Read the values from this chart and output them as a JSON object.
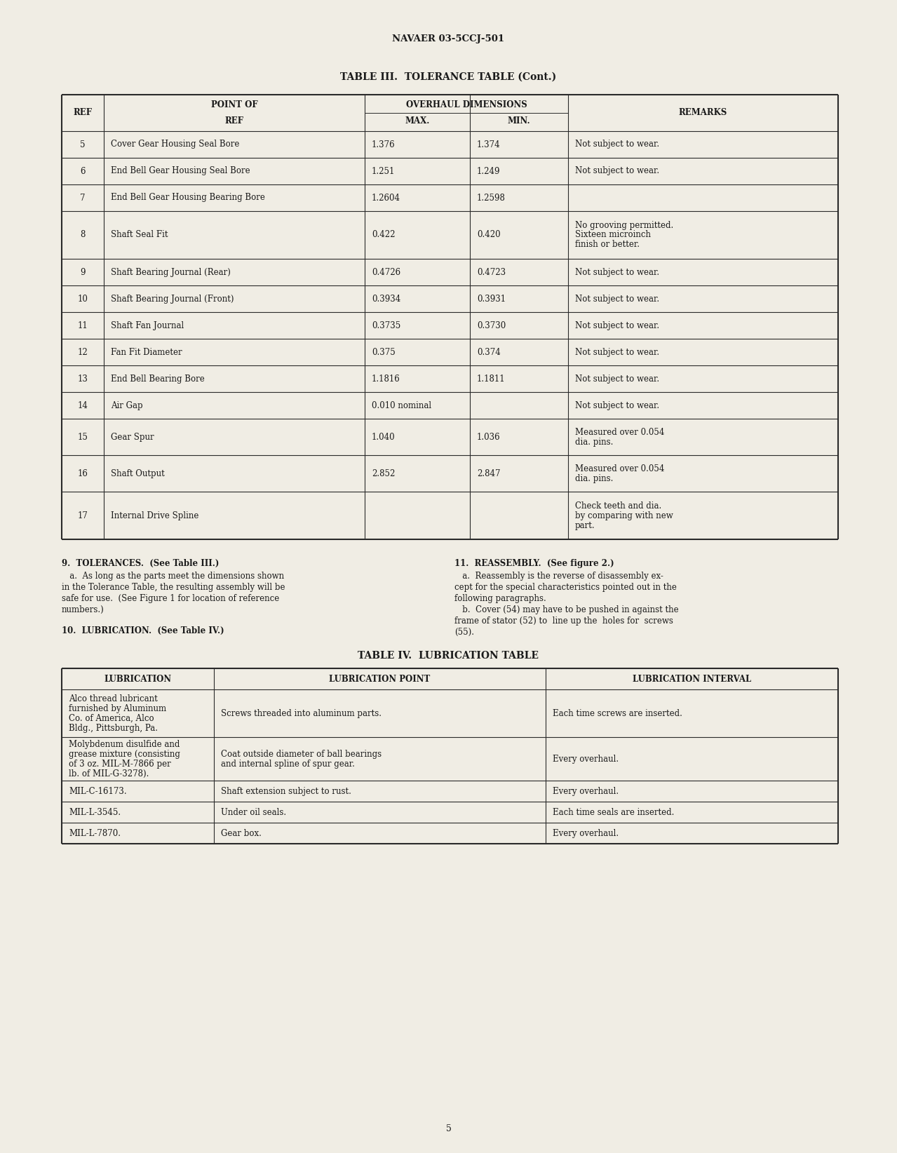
{
  "page_bg": "#f0ede4",
  "header_text": "NAVAER 03-5CCJ-501",
  "table3_title": "TABLE III.  TOLERANCE TABLE (Cont.)",
  "table3_rows": [
    [
      "5",
      "Cover Gear Housing Seal Bore",
      "1.376",
      "1.374",
      "Not subject to wear."
    ],
    [
      "6",
      "End Bell Gear Housing Seal Bore",
      "1.251",
      "1.249",
      "Not subject to wear."
    ],
    [
      "7",
      "End Bell Gear Housing Bearing Bore",
      "1.2604",
      "1.2598",
      ""
    ],
    [
      "8",
      "Shaft Seal Fit",
      "0.422",
      "0.420",
      "No grooving permitted.\nSixteen microinch\nfinish or better."
    ],
    [
      "9",
      "Shaft Bearing Journal (Rear)",
      "0.4726",
      "0.4723",
      "Not subject to wear."
    ],
    [
      "10",
      "Shaft Bearing Journal (Front)",
      "0.3934",
      "0.3931",
      "Not subject to wear."
    ],
    [
      "11",
      "Shaft Fan Journal",
      "0.3735",
      "0.3730",
      "Not subject to wear."
    ],
    [
      "12",
      "Fan Fit Diameter",
      "0.375",
      "0.374",
      "Not subject to wear."
    ],
    [
      "13",
      "End Bell Bearing Bore",
      "1.1816",
      "1.1811",
      "Not subject to wear."
    ],
    [
      "14",
      "Air Gap",
      "0.010 nominal",
      "",
      "Not subject to wear."
    ],
    [
      "15",
      "Gear Spur",
      "1.040",
      "1.036",
      "Measured over 0.054\ndia. pins."
    ],
    [
      "16",
      "Shaft Output",
      "2.852",
      "2.847",
      "Measured over 0.054\ndia. pins."
    ],
    [
      "17",
      "Internal Drive Spline",
      "",
      "",
      "Check teeth and dia.\nby comparing with new\npart."
    ]
  ],
  "section9_title": "9.  TOLERANCES.  (See Table III.)",
  "section9_body": [
    "   a.  As long as the parts meet the dimensions shown",
    "in the Tolerance Table, the resulting assembly will be",
    "safe for use.  (See Figure 1 for location of reference",
    "numbers.)"
  ],
  "section10_title": "10.  LUBRICATION.  (See Table IV.)",
  "section11_title": "11.  REASSEMBLY.  (See figure 2.)",
  "section11_body": [
    "   a.  Reassembly is the reverse of disassembly ex-",
    "cept for the special characteristics pointed out in the",
    "following paragraphs.",
    "   b.  Cover (54) may have to be pushed in against the",
    "frame of stator (52) to  line up the  holes for  screws",
    "(55)."
  ],
  "table4_title": "TABLE IV.  LUBRICATION TABLE",
  "table4_rows": [
    [
      "Alco thread lubricant\nfurnished by Aluminum\nCo. of America, Alco\nBldg., Pittsburgh, Pa.",
      "Screws threaded into aluminum parts.",
      "Each time screws are inserted."
    ],
    [
      "Molybdenum disulfide and\ngrease mixture (consisting\nof 3 oz. MIL-M-7866 per\nlb. of MIL-G-3278).",
      "Coat outside diameter of ball bearings\nand internal spline of spur gear.",
      "Every overhaul."
    ],
    [
      "MIL-C-16173.",
      "Shaft extension subject to rust.",
      "Every overhaul."
    ],
    [
      "MIL-L-3545.",
      "Under oil seals.",
      "Each time seals are inserted."
    ],
    [
      "MIL-L-7870.",
      "Gear box.",
      "Every overhaul."
    ]
  ],
  "page_number": "5",
  "text_color": "#1a1a1a",
  "line_color": "#2a2a2a"
}
